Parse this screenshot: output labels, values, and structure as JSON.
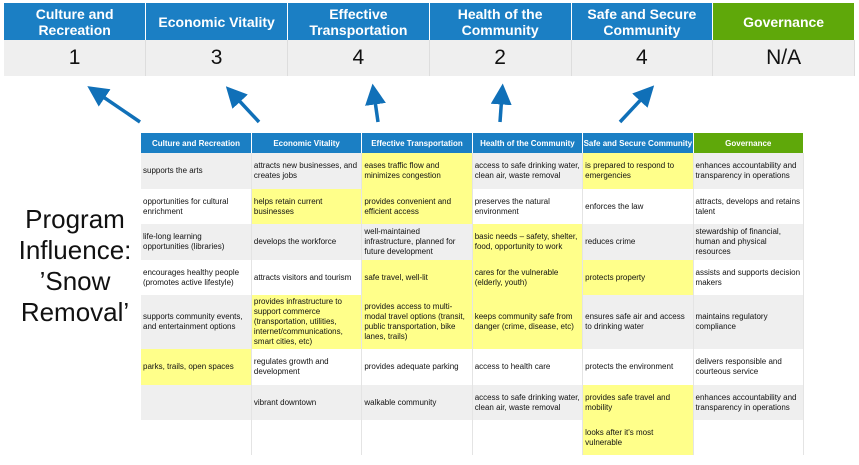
{
  "categories": [
    "Culture and Recreation",
    "Economic Vitality",
    "Effective Transportation",
    "Health of the Community",
    "Safe and Secure Community",
    "Governance"
  ],
  "scores": [
    "1",
    "3",
    "4",
    "2",
    "4",
    "N/A"
  ],
  "title_lines": [
    "Program",
    "Influence:",
    "’Snow",
    "Removal’"
  ],
  "colors": {
    "header_blue": "#1b7fc4",
    "governance_green": "#5fa80a",
    "highlight_yellow": "#ffff8a",
    "arrow": "#1070b8"
  },
  "matrix_headers": [
    "Culture and Recreation",
    "Economic Vitality",
    "Effective Transportation",
    "Health of the Community",
    "Safe and Secure Community",
    "Governance"
  ],
  "matrix_rows": [
    {
      "cells": [
        "supports the arts",
        "attracts new businesses, and creates jobs",
        "eases traffic flow and minimizes congestion",
        "access to safe drinking water, clean air, waste removal",
        "is prepared to respond to emergencies",
        "enhances accountability and transparency in operations"
      ],
      "highlight": [
        false,
        false,
        true,
        false,
        true,
        false
      ]
    },
    {
      "cells": [
        "opportunities for cultural enrichment",
        "helps retain current businesses",
        "provides convenient and efficient access",
        "preserves the natural environment",
        "enforces the law",
        "attracts, develops and retains talent"
      ],
      "highlight": [
        false,
        true,
        true,
        false,
        false,
        false
      ]
    },
    {
      "cells": [
        "life-long learning opportunities (libraries)",
        "develops the workforce",
        "well-maintained infrastructure, planned for future development",
        "basic needs – safety, shelter, food, opportunity to work",
        "reduces crime",
        "stewardship of financial, human and physical resources"
      ],
      "highlight": [
        false,
        false,
        false,
        true,
        false,
        false
      ]
    },
    {
      "cells": [
        "encourages healthy people (promotes active lifestyle)",
        "attracts visitors and tourism",
        "safe travel, well-lit",
        "cares for the vulnerable (elderly, youth)",
        "protects property",
        "assists and supports decision makers"
      ],
      "highlight": [
        false,
        false,
        true,
        true,
        true,
        false
      ]
    },
    {
      "cells": [
        "supports community events, and entertainment options",
        "provides infrastructure to support commerce (transportation, utilities, internet/communications, smart cities, etc)",
        "provides access to multi-modal travel options (transit, public transportation, bike lanes, trails)",
        "keeps community safe from danger (crime, disease, etc)",
        "ensures safe air and access to drinking water",
        "maintains regulatory compliance"
      ],
      "highlight": [
        false,
        true,
        true,
        true,
        false,
        false
      ]
    },
    {
      "cells": [
        "parks, trails, open spaces",
        "regulates growth and development",
        "provides adequate parking",
        "access to health care",
        "protects the environment",
        "delivers responsible and courteous service"
      ],
      "highlight": [
        true,
        false,
        false,
        false,
        false,
        false
      ]
    },
    {
      "cells": [
        "",
        "vibrant downtown",
        "walkable community",
        "access to safe drinking water, clean air, waste removal",
        "provides safe travel and mobility",
        "enhances accountability and transparency in operations"
      ],
      "highlight": [
        false,
        false,
        false,
        false,
        true,
        false
      ]
    },
    {
      "cells": [
        "",
        "",
        "",
        "",
        "looks after it's most vulnerable",
        ""
      ],
      "highlight": [
        false,
        false,
        false,
        false,
        true,
        false
      ]
    }
  ]
}
